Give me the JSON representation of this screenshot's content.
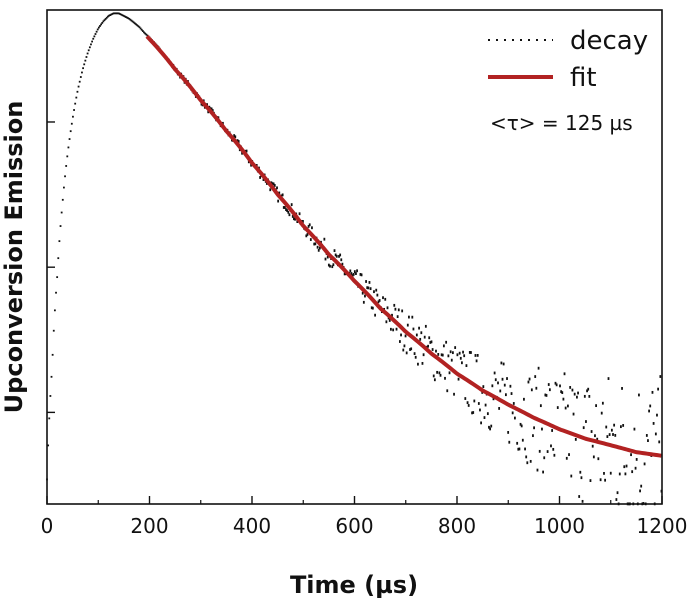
{
  "chart_data": {
    "type": "scatter",
    "xlabel": "Time (µs)",
    "ylabel": "Upconversion Emission",
    "xlim": [
      0,
      1200
    ],
    "x_ticks": [
      0,
      200,
      400,
      600,
      800,
      1000,
      1200
    ],
    "y_scale": "log",
    "ylim": [
      0.025,
      1.05
    ],
    "y_major_ticks": [
      0.05,
      0.15,
      0.45
    ],
    "y_tick_labels_shown": false,
    "grid": false,
    "legend": {
      "placement": "top-right",
      "entries": [
        {
          "label": "decay",
          "style": "dotted",
          "color": "#111111"
        },
        {
          "label": "fit",
          "style": "solid",
          "color": "#b22222"
        }
      ]
    },
    "annotation": "<τ> = 125 µs",
    "series": [
      {
        "name": "decay",
        "style": "dotted",
        "color": "#111111",
        "x": [
          0,
          10,
          20,
          30,
          40,
          50,
          60,
          70,
          80,
          90,
          100,
          110,
          120,
          130,
          140,
          150,
          160,
          170,
          180,
          190,
          200,
          250,
          300,
          350,
          400,
          450,
          500,
          550,
          600,
          650,
          700,
          750,
          800,
          850,
          900,
          950,
          1000,
          1050,
          1100,
          1150,
          1200
        ],
        "y": [
          0.03,
          0.07,
          0.14,
          0.24,
          0.35,
          0.46,
          0.57,
          0.67,
          0.76,
          0.84,
          0.91,
          0.96,
          1.0,
          1.02,
          1.02,
          1.0,
          0.98,
          0.95,
          0.92,
          0.88,
          0.85,
          0.67,
          0.53,
          0.42,
          0.33,
          0.26,
          0.205,
          0.165,
          0.135,
          0.11,
          0.092,
          0.078,
          0.067,
          0.059,
          0.053,
          0.048,
          0.044,
          0.041,
          0.039,
          0.037,
          0.036
        ],
        "noise": [
          0,
          0,
          0,
          0,
          0,
          0,
          0,
          0,
          0,
          0,
          0,
          0,
          0,
          0,
          0,
          0,
          0,
          0,
          0,
          0,
          0,
          0.01,
          0.015,
          0.02,
          0.025,
          0.03,
          0.035,
          0.05,
          0.06,
          0.08,
          0.1,
          0.12,
          0.14,
          0.17,
          0.2,
          0.24,
          0.28,
          0.32,
          0.36,
          0.4,
          0.4
        ]
      },
      {
        "name": "fit",
        "style": "solid",
        "color": "#b22222",
        "x": [
          195,
          250,
          300,
          350,
          400,
          450,
          500,
          550,
          600,
          650,
          700,
          750,
          800,
          850,
          900,
          950,
          1000,
          1050,
          1100,
          1150,
          1200
        ],
        "y": [
          0.86,
          0.67,
          0.53,
          0.42,
          0.33,
          0.26,
          0.205,
          0.165,
          0.135,
          0.11,
          0.092,
          0.078,
          0.067,
          0.059,
          0.053,
          0.048,
          0.044,
          0.041,
          0.039,
          0.037,
          0.036
        ]
      }
    ]
  }
}
